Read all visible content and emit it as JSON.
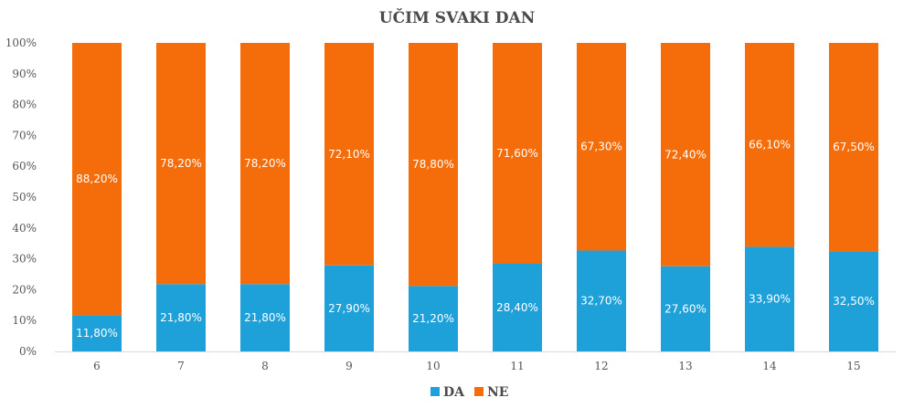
{
  "chart_data": {
    "type": "bar",
    "stacked": true,
    "title": "UČIM SVAKI DAN",
    "xlabel": "",
    "ylabel": "",
    "categories": [
      "6",
      "7",
      "8",
      "9",
      "10",
      "11",
      "12",
      "13",
      "14",
      "15"
    ],
    "series": [
      {
        "name": "DA",
        "color": "#1ea0d9",
        "values": [
          11.8,
          21.8,
          21.8,
          27.9,
          21.2,
          28.4,
          32.7,
          27.6,
          33.9,
          32.5
        ],
        "labels": [
          "11,80%",
          "21,80%",
          "21,80%",
          "27,90%",
          "21,20%",
          "28,40%",
          "32,70%",
          "27,60%",
          "33,90%",
          "32,50%"
        ]
      },
      {
        "name": "NE",
        "color": "#f46d0a",
        "values": [
          88.2,
          78.2,
          78.2,
          72.1,
          78.8,
          71.6,
          67.3,
          72.4,
          66.1,
          67.5
        ],
        "labels": [
          "88,20%",
          "78,20%",
          "78,20%",
          "72,10%",
          "78,80%",
          "71,60%",
          "67,30%",
          "72,40%",
          "66,10%",
          "67,50%"
        ]
      }
    ],
    "ylim": [
      0,
      100
    ],
    "yticks": [
      "0%",
      "10%",
      "20%",
      "30%",
      "40%",
      "50%",
      "60%",
      "70%",
      "80%",
      "90%",
      "100%"
    ],
    "grid": false,
    "legend_position": "bottom"
  }
}
